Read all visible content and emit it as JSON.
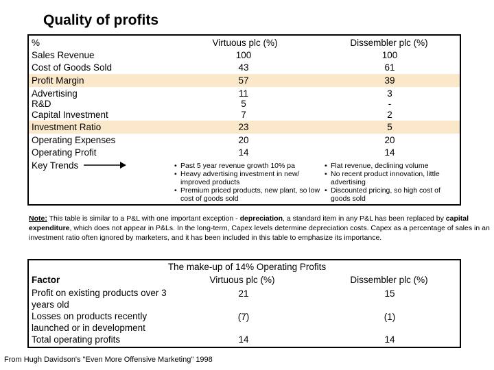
{
  "title": "Quality of profits",
  "table1": {
    "headers": [
      "%",
      "Virtuous plc (%)",
      "Dissembler plc (%)"
    ],
    "rows": [
      {
        "label": "Sales Revenue",
        "v": "100",
        "d": "100"
      },
      {
        "label": "Cost of Goods Sold",
        "v": "43",
        "d": "61"
      },
      {
        "label": "Profit Margin",
        "v": "57",
        "d": "39"
      },
      {
        "label": "Advertising",
        "v": "11",
        "d": "3"
      },
      {
        "label": "R&D",
        "v": "5",
        "d": "-"
      },
      {
        "label": "Capital Investment",
        "v": "7",
        "d": "2"
      },
      {
        "label": "Investment Ratio",
        "v": "23",
        "d": "5"
      },
      {
        "label": "Operating Expenses",
        "v": "20",
        "d": "20"
      },
      {
        "label": "Operating Profit",
        "v": "14",
        "d": "14"
      }
    ],
    "key_trends_label": "Key Trends",
    "virtuous_trends": [
      "Past 5 year revenue growth 10% pa",
      "Heavy advertising investment in new/ improved products",
      "Premium priced products, new plant, so low cost of goods sold"
    ],
    "dissembler_trends": [
      "Flat revenue, declining volume",
      "No recent product innovation, little advertising",
      "Discounted pricing, so high cost of goods sold"
    ]
  },
  "note": {
    "prefix": "Note:",
    "text1": " This table is similar to a P&L with one important exception - ",
    "bold1": "depreciation",
    "text2": ", a standard item in any P&L has been replaced by ",
    "bold2": "capital expenditure",
    "text3": ", which does not appear in P&Ls. In the long-term, Capex levels determine depreciation costs. Capex as a percentage of sales in an investment ratio often ignored by marketers, and it has been included in this table to emphasize its importance."
  },
  "table2": {
    "title": "The make-up of 14% Operating Profits",
    "headers": [
      "Factor",
      "Virtuous plc (%)",
      "Dissembler plc (%)"
    ],
    "rows": [
      {
        "label": "Profit on existing products over 3 years old",
        "v": "21",
        "d": "15"
      },
      {
        "label": "Losses on products recently launched or in development",
        "v": "(7)",
        "d": "(1)"
      },
      {
        "label": "Total operating profits",
        "v": "14",
        "d": "14"
      }
    ]
  },
  "source": "From Hugh Davidson's \"Even More Offensive Marketing\" 1998",
  "colors": {
    "highlight": "#fbe7c9",
    "border": "#000000"
  }
}
